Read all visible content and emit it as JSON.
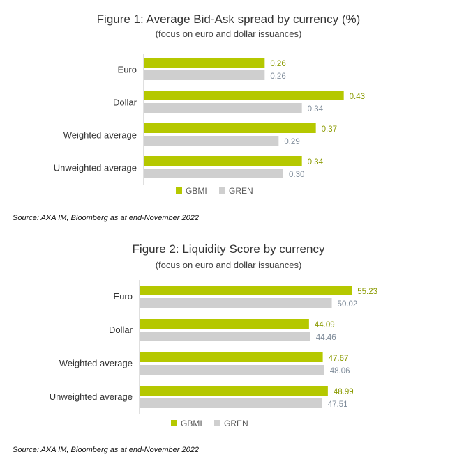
{
  "colors": {
    "gbmi": "#b5c800",
    "gren": "#cfcfcf",
    "axis": "#bfbfbf",
    "text": "#333333",
    "gbmi_label": "#8a9a00",
    "gren_label": "#7f8c9a"
  },
  "chart_data": [
    {
      "type": "bar",
      "orientation": "horizontal",
      "title": "Figure 1: Average Bid-Ask spread by currency (%)",
      "subtitle": "(focus on euro and dollar issuances)",
      "categories": [
        "Euro",
        "Dollar",
        "Weighted average",
        "Unweighted average"
      ],
      "series": [
        {
          "name": "GBMI",
          "values": [
            0.26,
            0.43,
            0.37,
            0.34
          ]
        },
        {
          "name": "GREN",
          "values": [
            0.26,
            0.34,
            0.29,
            0.3
          ]
        }
      ],
      "value_labels": {
        "GBMI": [
          "0.26",
          "0.43",
          "0.37",
          "0.34"
        ],
        "GREN": [
          "0.26",
          "0.34",
          "0.29",
          "0.30"
        ]
      },
      "xlim": [
        0,
        0.45
      ],
      "grid": false,
      "legend": "bottom-center",
      "source": "Source: AXA IM, Bloomberg as at end-November 2022"
    },
    {
      "type": "bar",
      "orientation": "horizontal",
      "title": "Figure 2: Liquidity Score by currency",
      "subtitle": "(focus on euro and dollar issuances)",
      "categories": [
        "Euro",
        "Dollar",
        "Weighted average",
        "Unweighted average"
      ],
      "series": [
        {
          "name": "GBMI",
          "values": [
            55.23,
            44.09,
            47.67,
            48.99
          ]
        },
        {
          "name": "GREN",
          "values": [
            50.02,
            44.46,
            48.06,
            47.51
          ]
        }
      ],
      "value_labels": {
        "GBMI": [
          "55.23",
          "44.09",
          "47.67",
          "48.99"
        ],
        "GREN": [
          "50.02",
          "44.46",
          "48.06",
          "47.51"
        ]
      },
      "xlim": [
        0,
        57
      ],
      "grid": false,
      "legend": "bottom-center",
      "source": "Source: AXA IM, Bloomberg as at end-November 2022"
    }
  ]
}
